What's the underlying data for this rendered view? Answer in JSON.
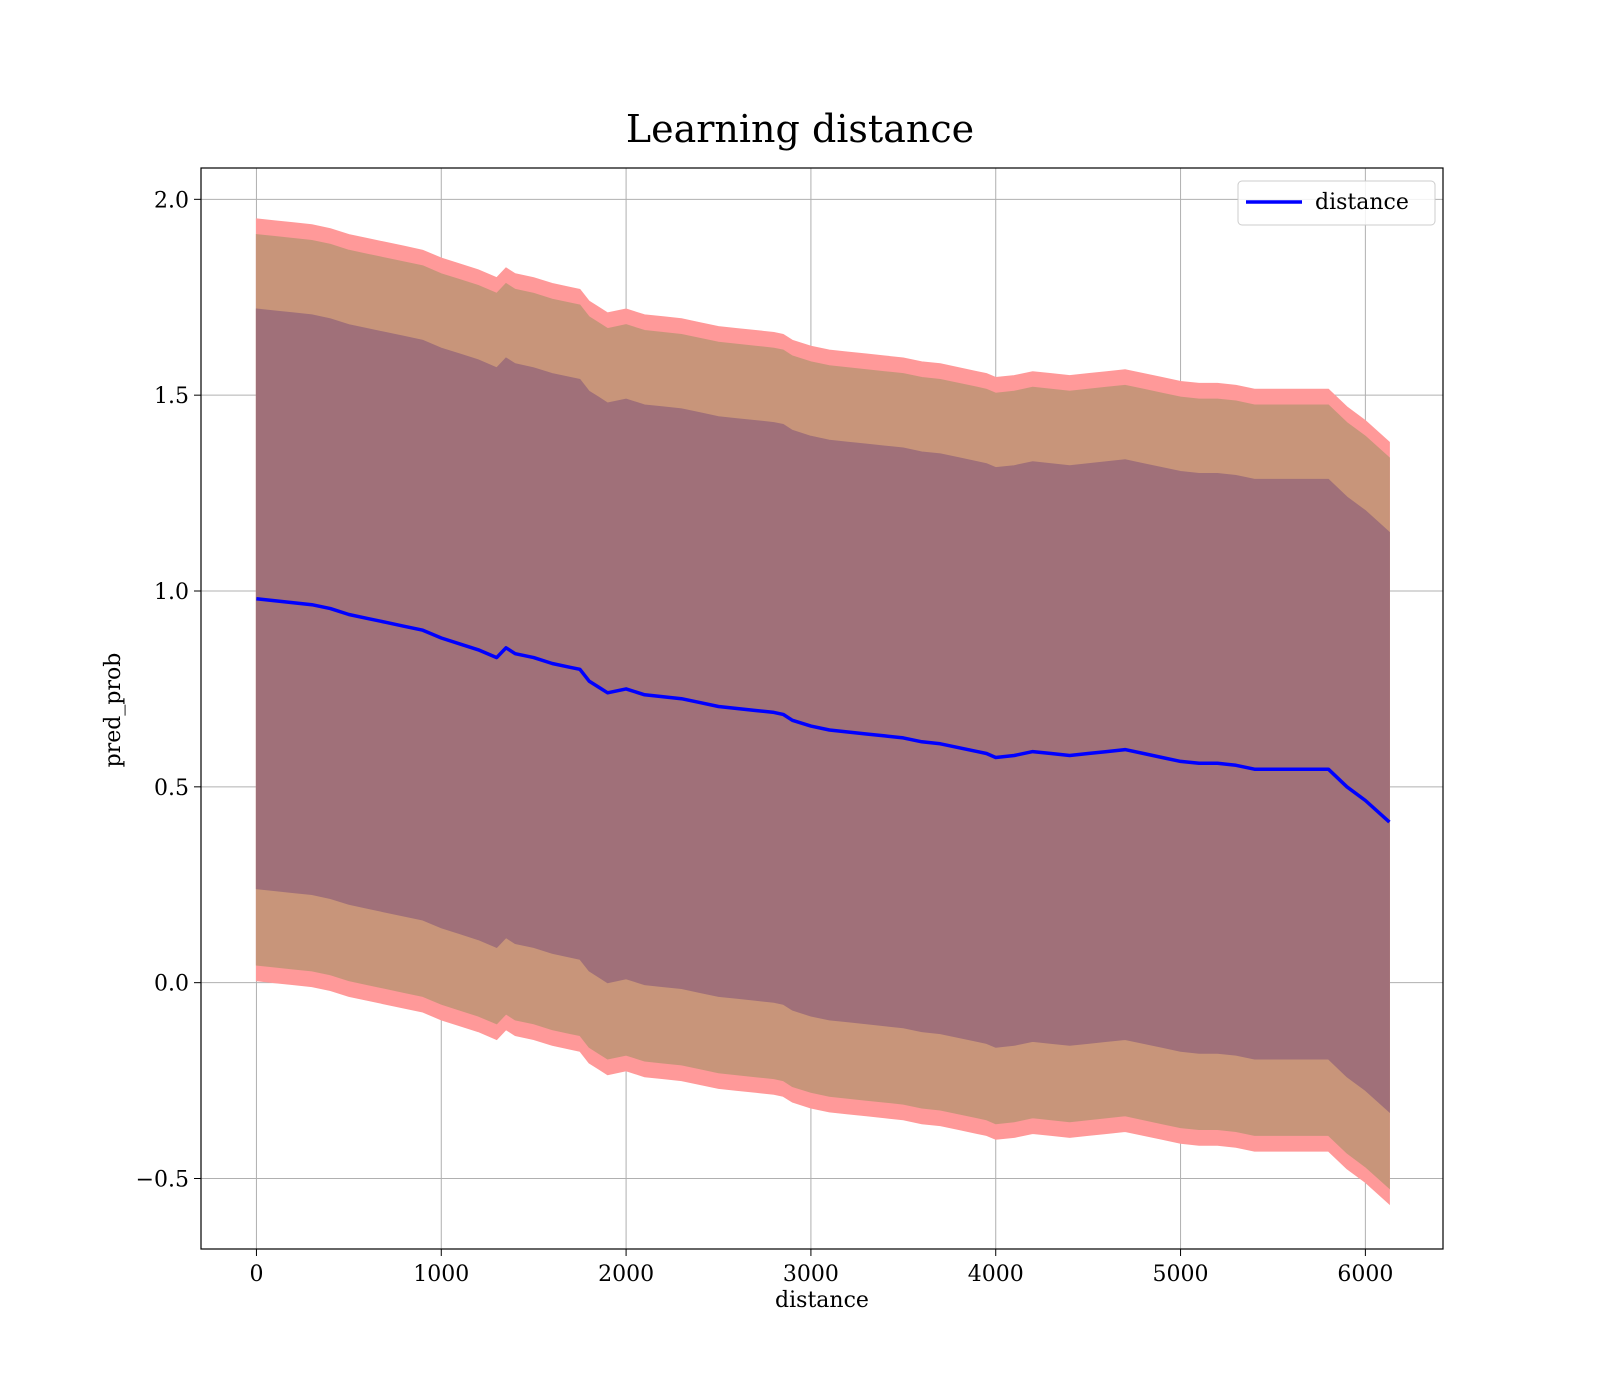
{
  "chart_data": {
    "type": "line",
    "title": "Learning distance",
    "xlabel": "distance",
    "ylabel": "pred_prob",
    "xlim": [
      -300,
      6420
    ],
    "ylim": [
      -0.68,
      2.08
    ],
    "xticks": [
      0,
      1000,
      2000,
      3000,
      4000,
      5000,
      6000
    ],
    "yticks": [
      -0.5,
      0.0,
      0.5,
      1.0,
      1.5,
      2.0
    ],
    "xtick_labels": [
      "0",
      "1000",
      "2000",
      "3000",
      "4000",
      "5000",
      "6000"
    ],
    "ytick_labels": [
      "−0.5",
      "0.0",
      "0.5",
      "1.0",
      "1.5",
      "2.0"
    ],
    "grid": true,
    "legend": {
      "position": "top-right",
      "entries": [
        "distance"
      ]
    },
    "colors": {
      "line": "#0000ff",
      "band_outer": "#ff9999",
      "band_middle": "#c8957a",
      "band_inner": "#a07079"
    },
    "series": [
      {
        "name": "distance",
        "x": [
          0,
          100,
          200,
          300,
          400,
          500,
          600,
          700,
          800,
          900,
          1000,
          1100,
          1200,
          1300,
          1350,
          1400,
          1500,
          1600,
          1700,
          1750,
          1800,
          1850,
          1900,
          2000,
          2100,
          2200,
          2300,
          2400,
          2500,
          2600,
          2700,
          2800,
          2850,
          2900,
          3000,
          3100,
          3200,
          3300,
          3400,
          3500,
          3600,
          3700,
          3800,
          3900,
          3950,
          4000,
          4100,
          4200,
          4300,
          4400,
          4500,
          4600,
          4700,
          4800,
          4900,
          5000,
          5100,
          5200,
          5300,
          5400,
          5500,
          5600,
          5700,
          5800,
          5900,
          6000,
          6130
        ],
        "y": [
          0.98,
          0.975,
          0.97,
          0.965,
          0.955,
          0.94,
          0.93,
          0.92,
          0.91,
          0.9,
          0.88,
          0.865,
          0.85,
          0.83,
          0.855,
          0.84,
          0.83,
          0.815,
          0.805,
          0.8,
          0.77,
          0.755,
          0.74,
          0.75,
          0.735,
          0.73,
          0.725,
          0.715,
          0.705,
          0.7,
          0.695,
          0.69,
          0.685,
          0.67,
          0.655,
          0.645,
          0.64,
          0.635,
          0.63,
          0.625,
          0.615,
          0.61,
          0.6,
          0.59,
          0.585,
          0.575,
          0.58,
          0.59,
          0.585,
          0.58,
          0.585,
          0.59,
          0.595,
          0.585,
          0.575,
          0.565,
          0.56,
          0.56,
          0.555,
          0.545,
          0.545,
          0.545,
          0.545,
          0.545,
          0.5,
          0.465,
          0.41
        ]
      }
    ],
    "bands": [
      {
        "name": "outer",
        "offset_upper": 0.97,
        "offset_lower": 0.975
      },
      {
        "name": "middle",
        "offset_upper": 0.93,
        "offset_lower": 0.935
      },
      {
        "name": "inner",
        "offset_upper": 0.74,
        "offset_lower": 0.74
      }
    ]
  }
}
